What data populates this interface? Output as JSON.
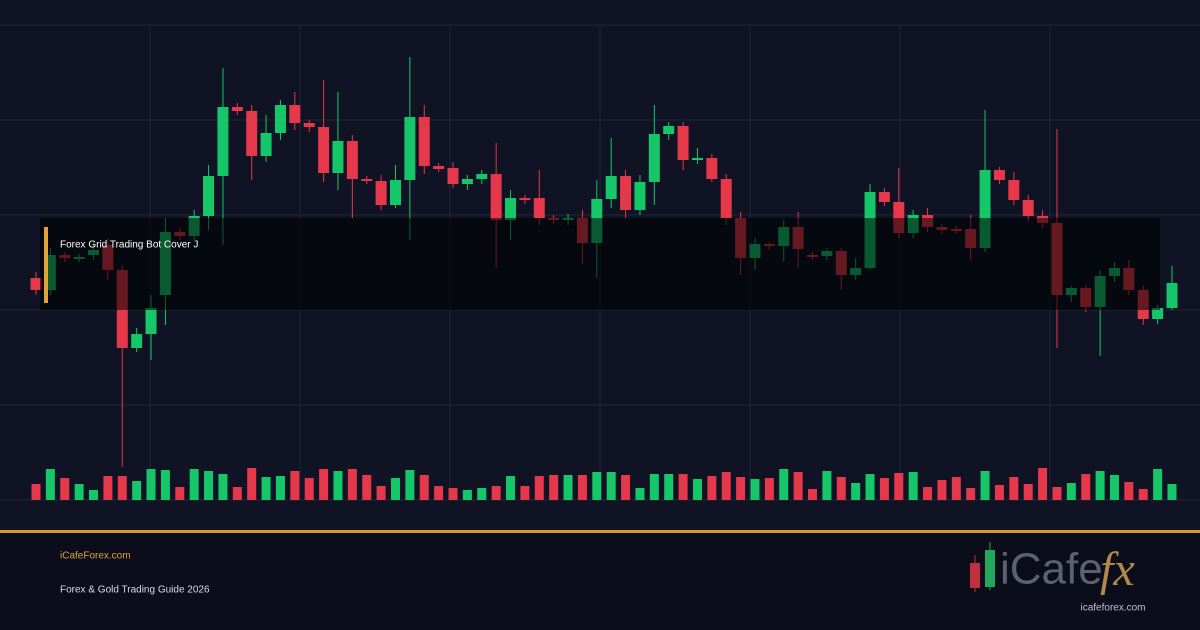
{
  "chart_data": {
    "type": "candlestick",
    "annotation": "Forex Grid Trading Bot Cover J",
    "up_color": "#16c76a",
    "down_color": "#e5394b",
    "ylim": [
      0,
      475
    ],
    "open": [
      222,
      210,
      245,
      242,
      245,
      255,
      230,
      152,
      166,
      205,
      268,
      264,
      284,
      324,
      393,
      389,
      344,
      367,
      395,
      377,
      373,
      327,
      359,
      321,
      319,
      295,
      320,
      383,
      334,
      332,
      316,
      321,
      326,
      280,
      302,
      302,
      282,
      280,
      282,
      257,
      301,
      324,
      290,
      318,
      366,
      374,
      340,
      342,
      321,
      282,
      242,
      256,
      254,
      273,
      245,
      244,
      249,
      225,
      232,
      308,
      298,
      267,
      285,
      273,
      271,
      271,
      252,
      330,
      320,
      300,
      284,
      277,
      205,
      212,
      193,
      224,
      232,
      210,
      181,
      192
    ],
    "high": [
      228,
      252,
      248,
      246,
      258,
      262,
      235,
      172,
      205,
      282,
      272,
      290,
      335,
      432,
      397,
      395,
      385,
      400,
      408,
      380,
      420,
      408,
      365,
      324,
      325,
      335,
      443,
      395,
      337,
      338,
      325,
      330,
      357,
      310,
      305,
      330,
      285,
      286,
      290,
      320,
      362,
      330,
      325,
      395,
      378,
      378,
      352,
      346,
      326,
      288,
      262,
      258,
      280,
      288,
      248,
      252,
      252,
      242,
      316,
      312,
      332,
      290,
      292,
      276,
      274,
      285,
      390,
      333,
      328,
      305,
      290,
      371,
      214,
      215,
      230,
      238,
      240,
      215,
      195,
      234
    ],
    "low": [
      205,
      205,
      238,
      238,
      240,
      220,
      33,
      148,
      140,
      175,
      260,
      258,
      270,
      255,
      385,
      320,
      338,
      360,
      370,
      368,
      318,
      310,
      282,
      316,
      290,
      292,
      260,
      326,
      328,
      312,
      310,
      316,
      232,
      260,
      296,
      275,
      276,
      275,
      236,
      222,
      292,
      282,
      285,
      295,
      360,
      330,
      336,
      318,
      275,
      225,
      230,
      250,
      238,
      232,
      240,
      240,
      210,
      220,
      230,
      294,
      262,
      262,
      268,
      266,
      266,
      240,
      248,
      316,
      295,
      278,
      272,
      152,
      198,
      188,
      144,
      218,
      205,
      175,
      176,
      190
    ],
    "close": [
      210,
      245,
      242,
      243,
      250,
      230,
      152,
      166,
      192,
      268,
      264,
      284,
      324,
      393,
      389,
      344,
      367,
      395,
      377,
      373,
      327,
      359,
      321,
      319,
      295,
      320,
      383,
      334,
      331,
      316,
      321,
      326,
      280,
      302,
      300,
      282,
      280,
      282,
      257,
      301,
      324,
      290,
      318,
      366,
      374,
      340,
      342,
      321,
      282,
      242,
      256,
      254,
      273,
      251,
      243,
      249,
      225,
      232,
      308,
      298,
      267,
      285,
      273,
      270,
      269,
      252,
      330,
      320,
      300,
      284,
      277,
      205,
      212,
      193,
      224,
      232,
      210,
      181,
      192,
      217
    ],
    "volume": [
      16,
      31,
      22,
      16,
      10,
      24,
      24,
      19,
      31,
      30,
      13,
      31,
      29,
      26,
      13,
      32,
      23,
      24,
      29,
      22,
      31,
      29,
      31,
      25,
      14,
      22,
      30,
      25,
      14,
      12,
      10,
      12,
      14,
      24,
      14,
      24,
      25,
      25,
      25,
      28,
      28,
      25,
      12,
      26,
      26,
      26,
      21,
      24,
      28,
      23,
      21,
      22,
      31,
      28,
      11,
      29,
      23,
      17,
      26,
      22,
      27,
      28,
      13,
      20,
      23,
      12,
      29,
      15,
      23,
      16,
      32,
      13,
      17,
      26,
      29,
      25,
      18,
      11,
      31,
      16
    ]
  },
  "footer": {
    "site": "iCafeForex.com",
    "subtitle": "Forex & Gold Trading Guide 2026",
    "logo_text": "iCafe",
    "logo_mark": "fx",
    "logo_url": "icafeforex.com"
  }
}
